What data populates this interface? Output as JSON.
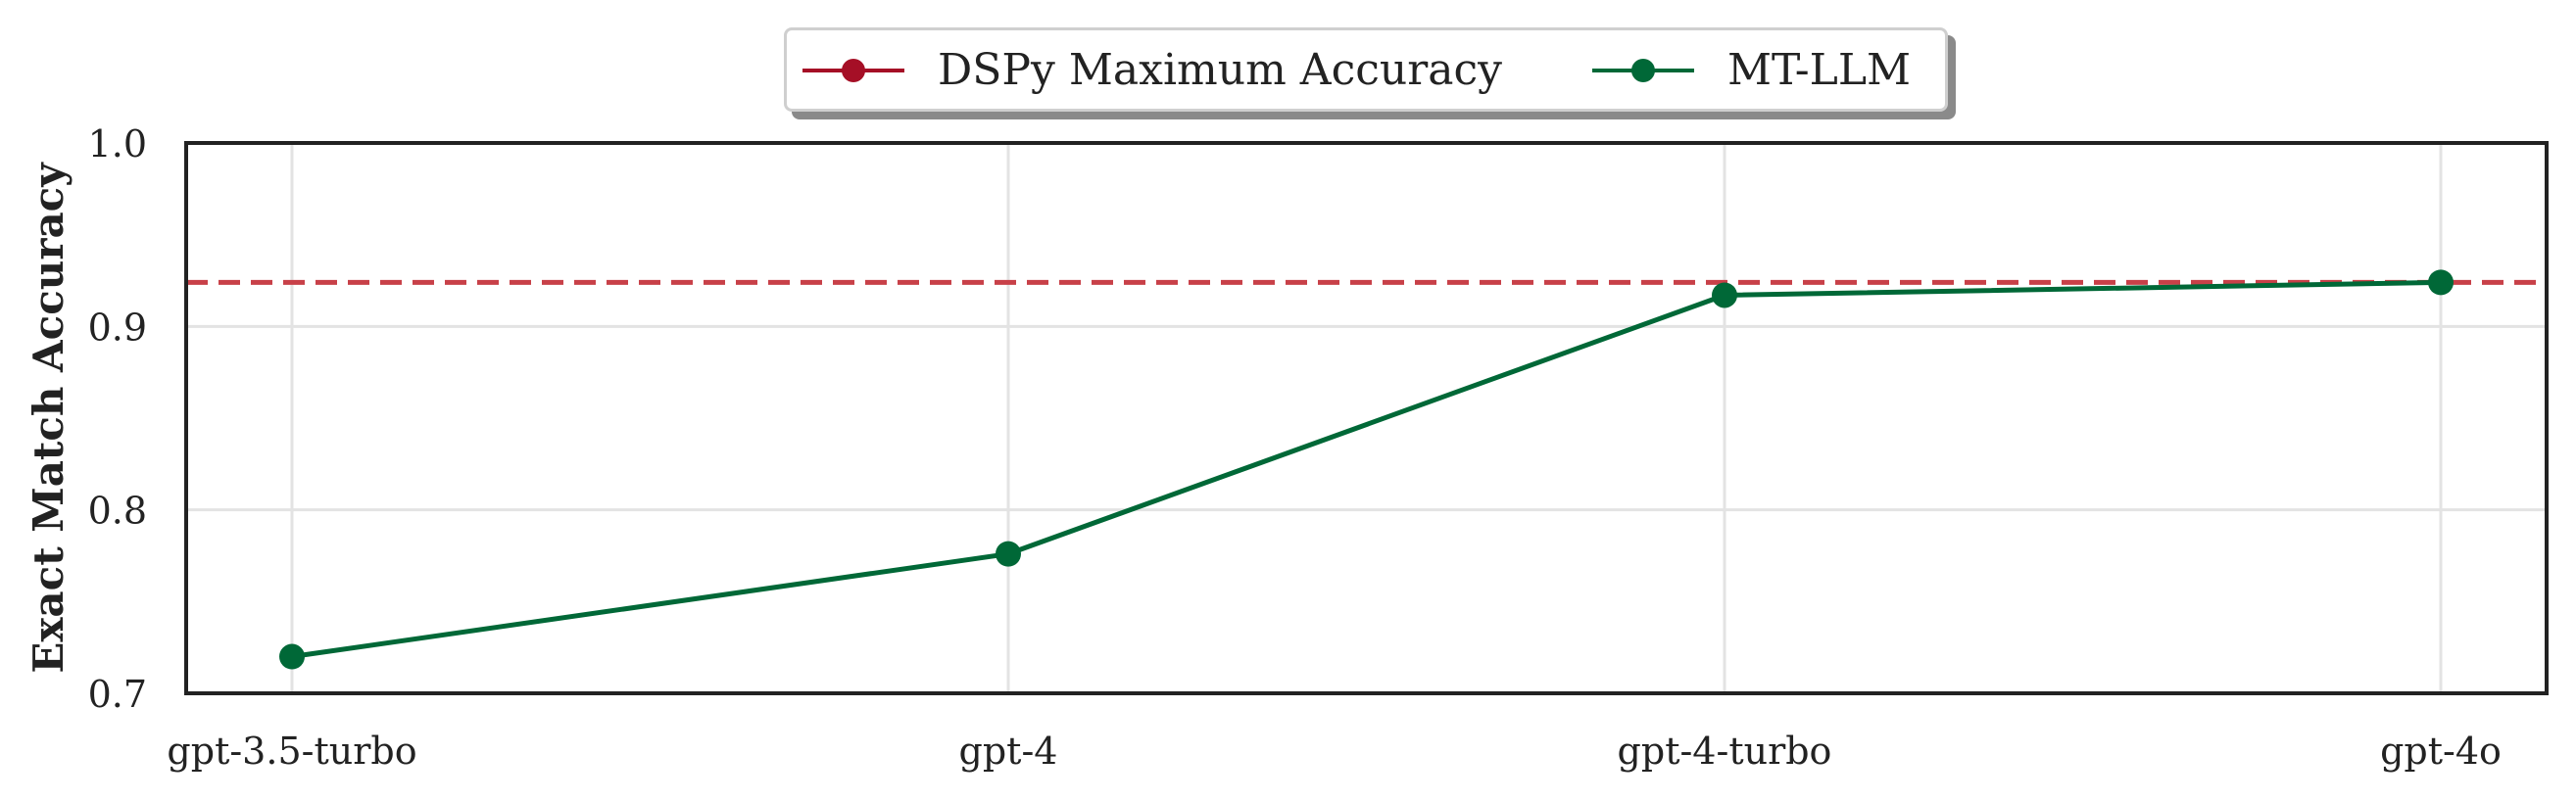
{
  "chart_data": {
    "type": "line",
    "categories": [
      "gpt-3.5-turbo",
      "gpt-4",
      "gpt-4-turbo",
      "gpt-4o"
    ],
    "series": [
      {
        "name": "MT-LLM",
        "values": [
          0.72,
          0.776,
          0.917,
          0.924
        ],
        "color": "#006837",
        "style": "solid-with-markers"
      }
    ],
    "reference_lines": [
      {
        "name": "DSPy Maximum Accuracy",
        "value": 0.924,
        "color": "#c84048",
        "legend_color": "#a50f26",
        "style": "dashed"
      }
    ],
    "title": "",
    "xlabel": "",
    "ylabel": "Exact Match Accuracy",
    "ylim": [
      0.7,
      1.0
    ],
    "yticks": [
      "0.7",
      "0.8",
      "0.9",
      "1.0"
    ],
    "grid": true,
    "legend_position": "top-center"
  }
}
